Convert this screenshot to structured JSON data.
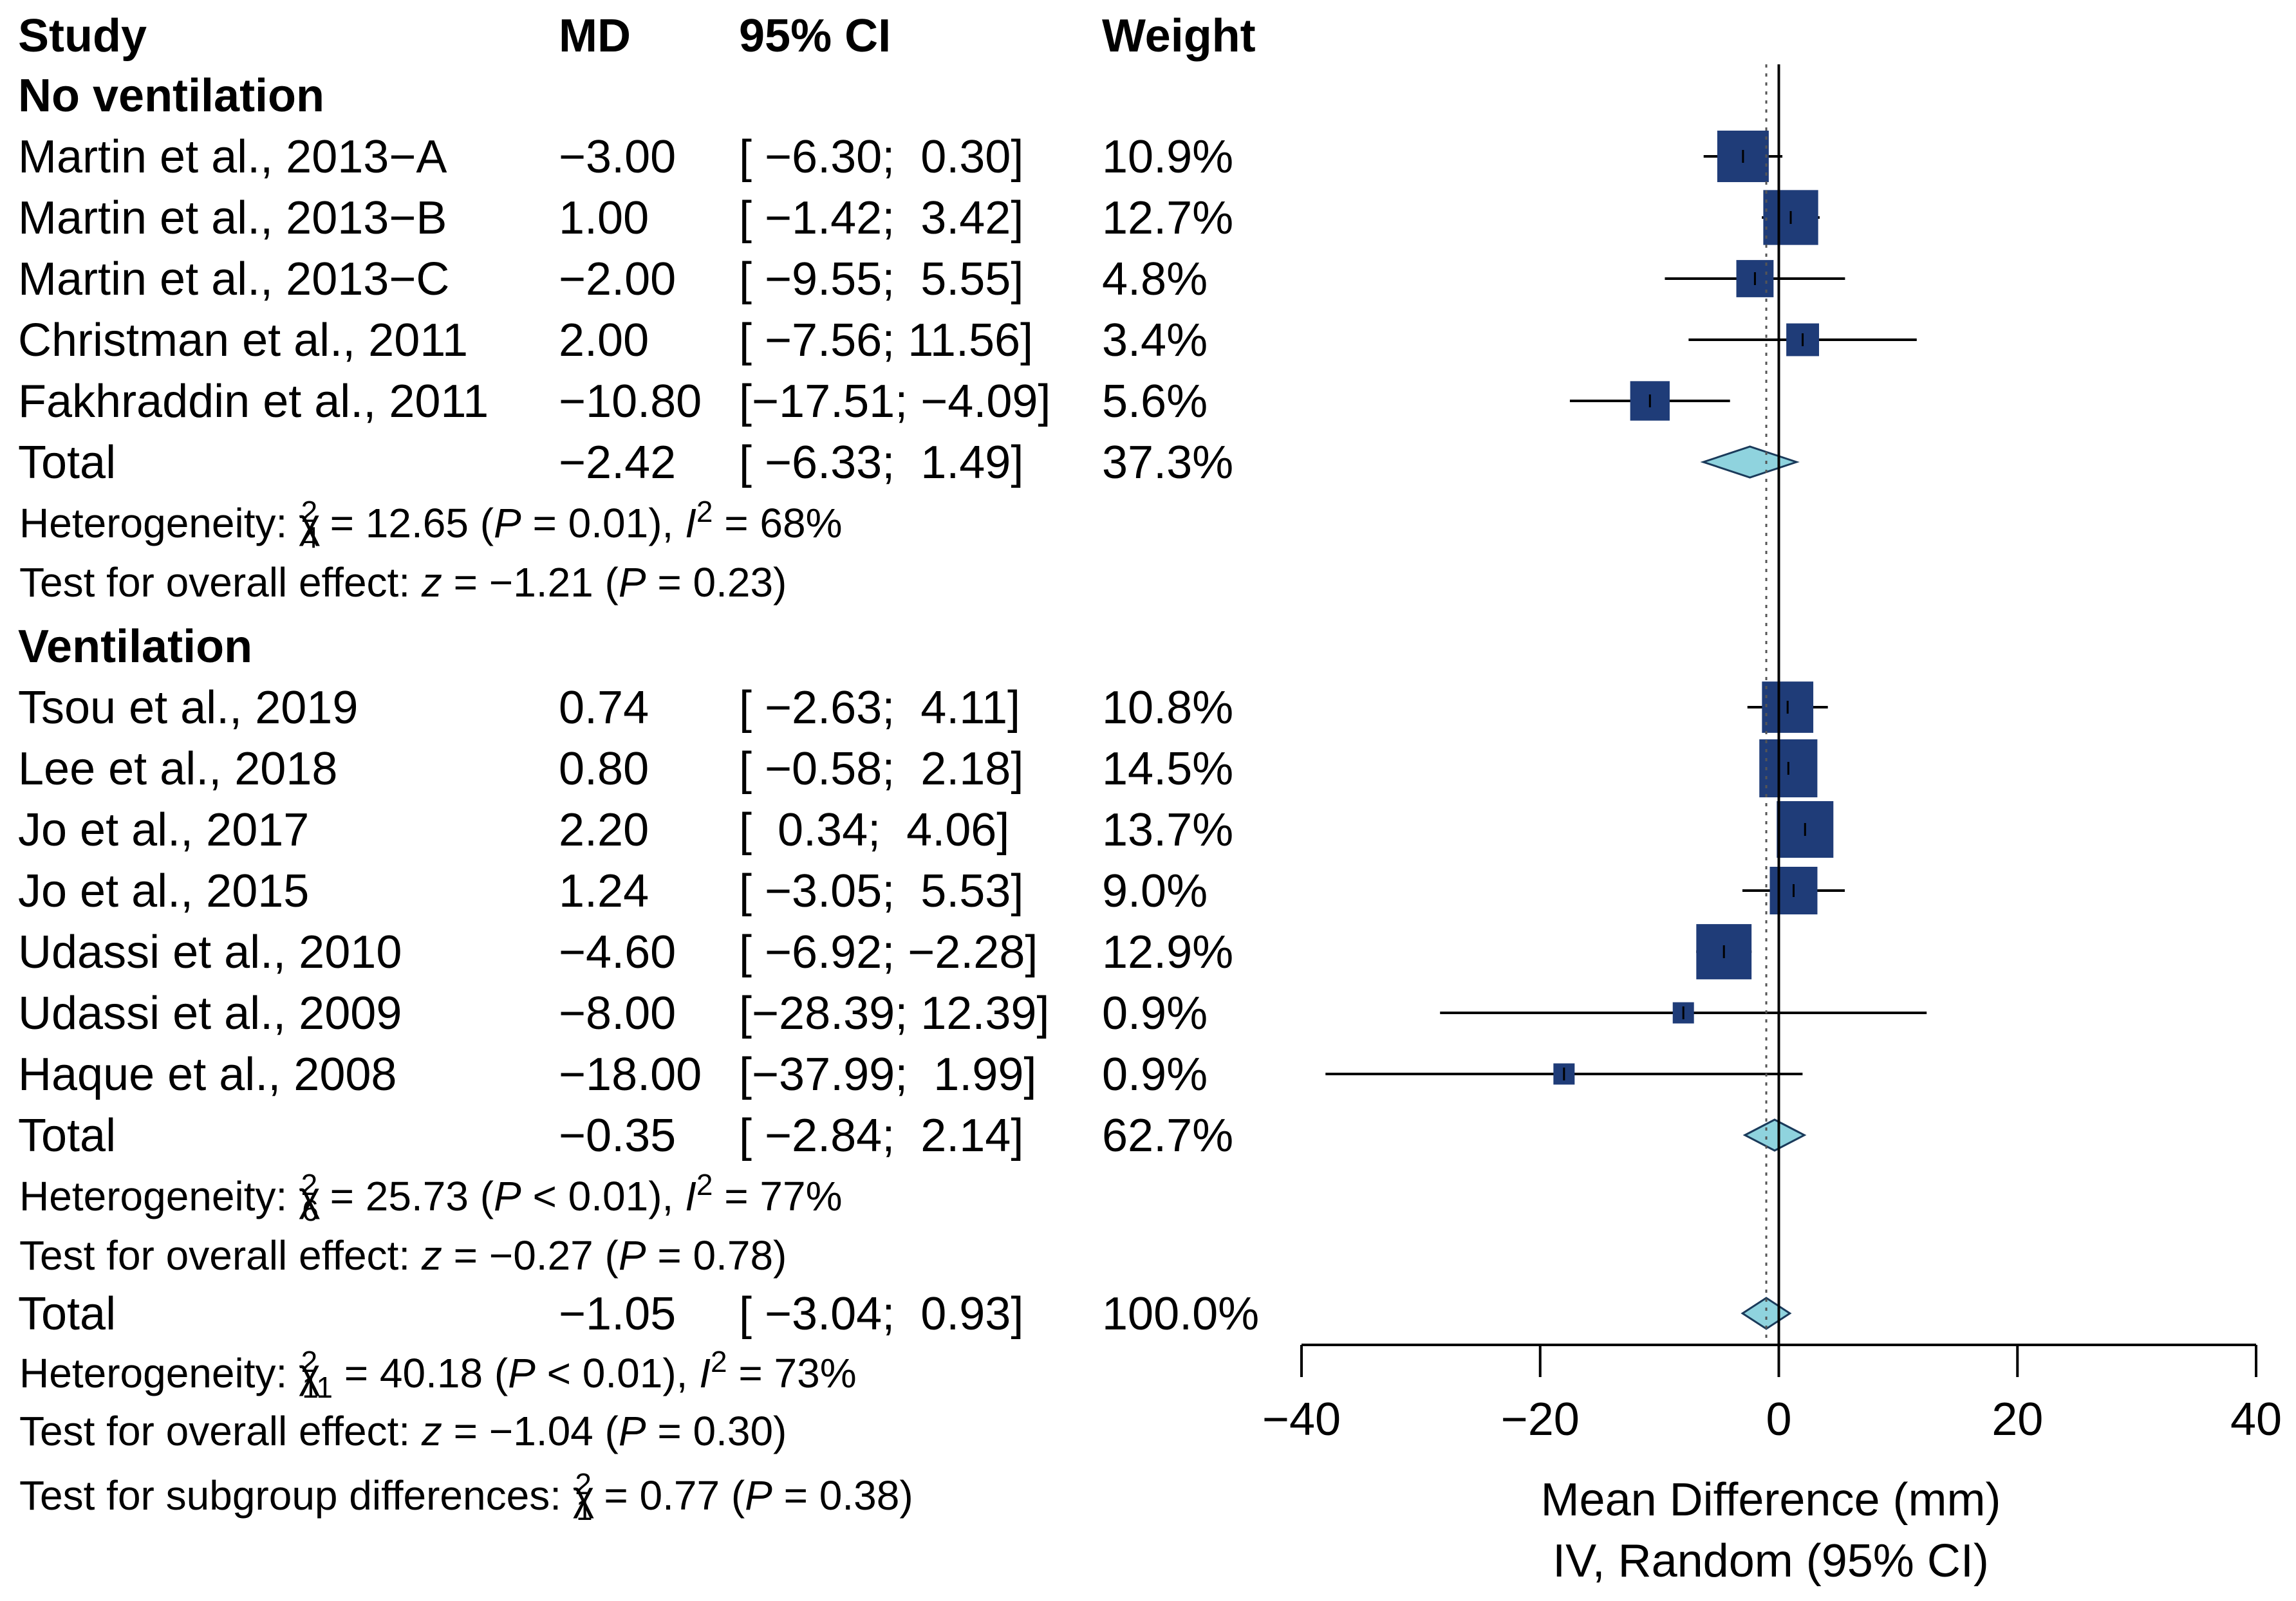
{
  "headers": {
    "study": "Study",
    "md": "MD",
    "ci": "95% CI",
    "weight": "Weight"
  },
  "colors": {
    "square": "#1f3c78",
    "diamond": "#8fd3de",
    "line": "#000000"
  },
  "chart_data": {
    "type": "forest",
    "xlabel": "Mean Difference (mm)",
    "xlabel2": "IV, Random (95% CI)",
    "xlim": [
      -40,
      40
    ],
    "xticks": [
      -40,
      -20,
      0,
      20,
      40
    ],
    "tick_labels": [
      "−40",
      "−20",
      "0",
      "20",
      "40"
    ],
    "overall_effect": -1.05,
    "reference_line": 0,
    "groups": [
      {
        "name": "No ventilation",
        "studies": [
          {
            "label": "Martin et al., 2013−A",
            "md": "−3.00",
            "ci": "[ −6.30;  0.30]",
            "weight": "10.9%",
            "est": -3.0,
            "lo": -6.3,
            "hi": 0.3,
            "w": 10.9
          },
          {
            "label": "Martin et al., 2013−B",
            "md": "1.00",
            "ci": "[ −1.42;  3.42]",
            "weight": "12.7%",
            "est": 1.0,
            "lo": -1.42,
            "hi": 3.42,
            "w": 12.7
          },
          {
            "label": "Martin et al., 2013−C",
            "md": "−2.00",
            "ci": "[ −9.55;  5.55]",
            "weight": "4.8%",
            "est": -2.0,
            "lo": -9.55,
            "hi": 5.55,
            "w": 4.8
          },
          {
            "label": "Christman et al., 2011",
            "md": "2.00",
            "ci": "[ −7.56; 11.56]",
            "weight": "3.4%",
            "est": 2.0,
            "lo": -7.56,
            "hi": 11.56,
            "w": 3.4
          },
          {
            "label": "Fakhraddin et al., 2011",
            "md": "−10.80",
            "ci": "[−17.51; −4.09]",
            "weight": "5.6%",
            "est": -10.8,
            "lo": -17.51,
            "hi": -4.09,
            "w": 5.6
          }
        ],
        "total": {
          "label": "Total",
          "md": "−2.42",
          "ci": "[ −6.33;  1.49]",
          "weight": "37.3%",
          "est": -2.42,
          "lo": -6.33,
          "hi": 1.49
        },
        "heterogeneity": {
          "prefix": "Heterogeneity: χ",
          "sub": "4",
          "mid": " = 12.65 (",
          "p": "P",
          "pval": " = 0.01), ",
          "i": "I",
          "isq": " = 68%"
        },
        "overall": {
          "prefix": "Test for overall effect: ",
          "z": "z",
          "zval": " = −1.21 (",
          "p": "P",
          "pval": " = 0.23)"
        }
      },
      {
        "name": "Ventilation",
        "studies": [
          {
            "label": "Tsou et al., 2019",
            "md": "0.74",
            "ci": "[ −2.63;  4.11]",
            "weight": "10.8%",
            "est": 0.74,
            "lo": -2.63,
            "hi": 4.11,
            "w": 10.8
          },
          {
            "label": "Lee et al., 2018",
            "md": "0.80",
            "ci": "[ −0.58;  2.18]",
            "weight": "14.5%",
            "est": 0.8,
            "lo": -0.58,
            "hi": 2.18,
            "w": 14.5
          },
          {
            "label": "Jo et al., 2017",
            "md": "2.20",
            "ci": "[  0.34;  4.06]",
            "weight": "13.7%",
            "est": 2.2,
            "lo": 0.34,
            "hi": 4.06,
            "w": 13.7
          },
          {
            "label": "Jo et al., 2015",
            "md": "1.24",
            "ci": "[ −3.05;  5.53]",
            "weight": "9.0%",
            "est": 1.24,
            "lo": -3.05,
            "hi": 5.53,
            "w": 9.0
          },
          {
            "label": "Udassi et al., 2010",
            "md": "−4.60",
            "ci": "[ −6.92; −2.28]",
            "weight": "12.9%",
            "est": -4.6,
            "lo": -6.92,
            "hi": -2.28,
            "w": 12.9
          },
          {
            "label": "Udassi et al., 2009",
            "md": "−8.00",
            "ci": "[−28.39; 12.39]",
            "weight": "0.9%",
            "est": -8.0,
            "lo": -28.39,
            "hi": 12.39,
            "w": 0.9
          },
          {
            "label": "Haque et al., 2008",
            "md": "−18.00",
            "ci": "[−37.99;  1.99]",
            "weight": "0.9%",
            "est": -18.0,
            "lo": -37.99,
            "hi": 1.99,
            "w": 0.9
          }
        ],
        "total": {
          "label": "Total",
          "md": "−0.35",
          "ci": "[ −2.84;  2.14]",
          "weight": "62.7%",
          "est": -0.35,
          "lo": -2.84,
          "hi": 2.14
        },
        "heterogeneity": {
          "prefix": "Heterogeneity: χ",
          "sub": "6",
          "mid": " = 25.73 (",
          "p": "P",
          "pval": " < 0.01), ",
          "i": "I",
          "isq": " = 77%"
        },
        "overall": {
          "prefix": "Test for overall effect: ",
          "z": "z",
          "zval": " = −0.27 (",
          "p": "P",
          "pval": " = 0.78)"
        }
      }
    ],
    "overall_total": {
      "label": "Total",
      "md": "−1.05",
      "ci": "[ −3.04;  0.93]",
      "weight": "100.0%",
      "est": -1.05,
      "lo": -3.04,
      "hi": 0.93
    },
    "overall_heterogeneity": {
      "prefix": "Heterogeneity: χ",
      "sub": "11",
      "mid": " = 40.18 (",
      "p": "P",
      "pval": " < 0.01), ",
      "i": "I",
      "isq": " = 73%"
    },
    "overall_effect_test": {
      "prefix": "Test for overall effect: ",
      "z": "z",
      "zval": " = −1.04 (",
      "p": "P",
      "pval": " = 0.30)"
    },
    "subgroup_test": {
      "prefix": "Test for subgroup differences: χ",
      "sub": "1",
      "mid": " = 0.77 (",
      "p": "P",
      "pval": " = 0.38)"
    }
  }
}
